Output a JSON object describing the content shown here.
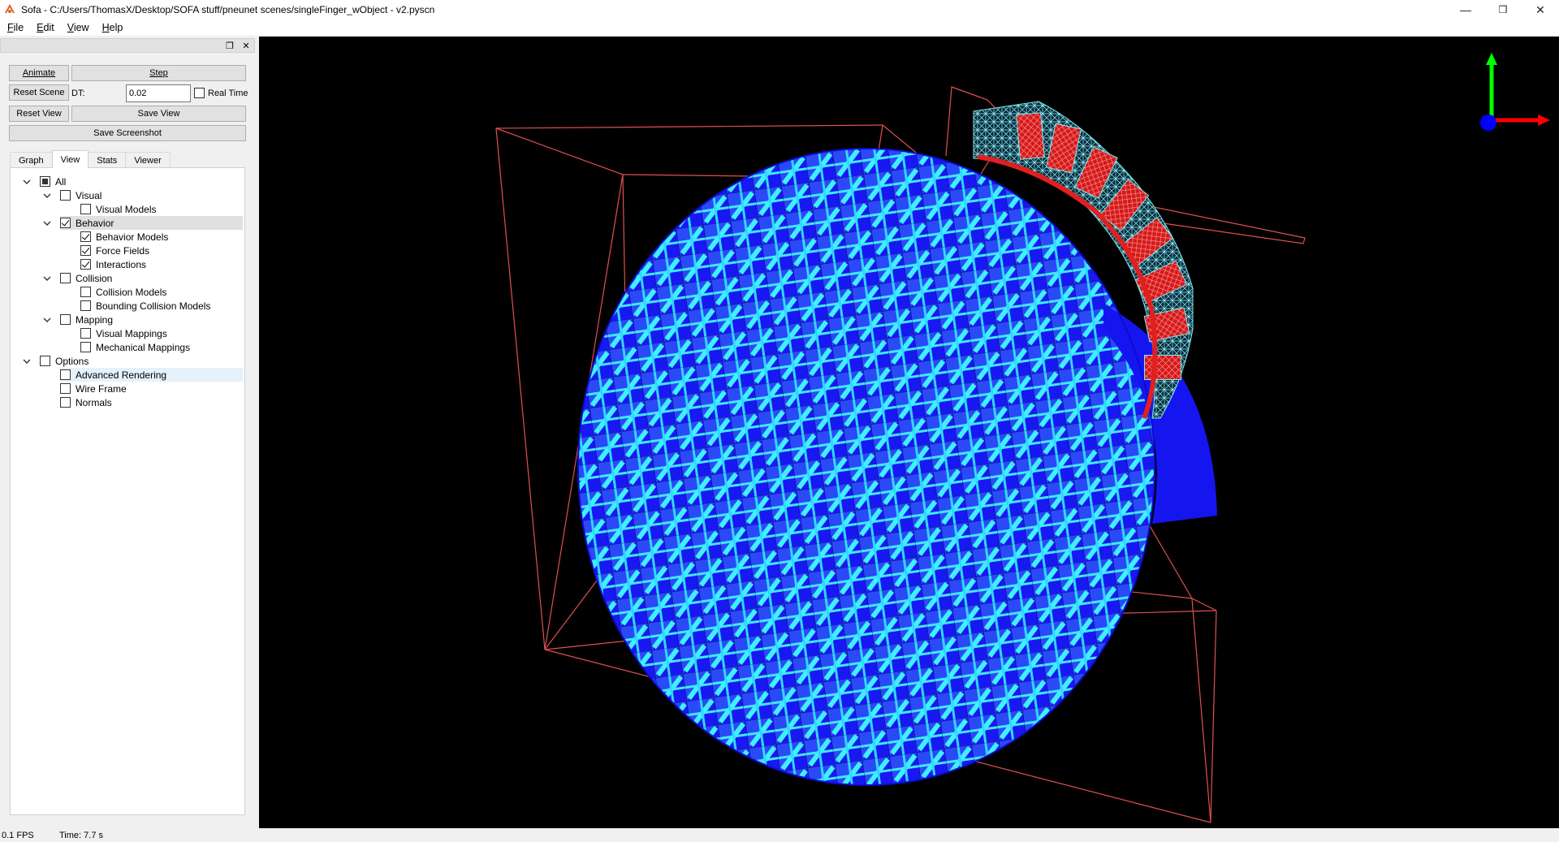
{
  "window": {
    "title": "Sofa - C:/Users/ThomasX/Desktop/SOFA stuff/pneunet scenes/singleFinger_wObject - v2.pyscn"
  },
  "menu": [
    {
      "label": "File",
      "accel": "F",
      "rest": "ile"
    },
    {
      "label": "Edit",
      "accel": "E",
      "rest": "dit"
    },
    {
      "label": "View",
      "accel": "V",
      "rest": "iew"
    },
    {
      "label": "Help",
      "accel": "H",
      "rest": "elp"
    }
  ],
  "controls": {
    "animate": "Animate",
    "step": "Step",
    "reset_scene": "Reset Scene",
    "dt_label": "DT:",
    "dt_value": "0.02",
    "real_time": "Real Time",
    "real_time_checked": false,
    "reset_view": "Reset View",
    "save_view": "Save View",
    "save_screenshot": "Save Screenshot"
  },
  "tabs": [
    {
      "label": "Graph",
      "active": false
    },
    {
      "label": "View",
      "active": true
    },
    {
      "label": "Stats",
      "active": false
    },
    {
      "label": "Viewer",
      "active": false
    }
  ],
  "tree": [
    {
      "label": "All",
      "level": 0,
      "expandable": true,
      "state": "partial"
    },
    {
      "label": "Visual",
      "level": 1,
      "expandable": true,
      "state": "unchecked"
    },
    {
      "label": "Visual Models",
      "level": 2,
      "expandable": false,
      "state": "unchecked"
    },
    {
      "label": "Behavior",
      "level": 1,
      "expandable": true,
      "state": "checked",
      "selected": true
    },
    {
      "label": "Behavior Models",
      "level": 2,
      "expandable": false,
      "state": "checked"
    },
    {
      "label": "Force Fields",
      "level": 2,
      "expandable": false,
      "state": "checked"
    },
    {
      "label": "Interactions",
      "level": 2,
      "expandable": false,
      "state": "checked"
    },
    {
      "label": "Collision",
      "level": 1,
      "expandable": true,
      "state": "unchecked"
    },
    {
      "label": "Collision Models",
      "level": 2,
      "expandable": false,
      "state": "unchecked"
    },
    {
      "label": "Bounding Collision Models",
      "level": 2,
      "expandable": false,
      "state": "unchecked"
    },
    {
      "label": "Mapping",
      "level": 1,
      "expandable": true,
      "state": "unchecked"
    },
    {
      "label": "Visual Mappings",
      "level": 2,
      "expandable": false,
      "state": "unchecked"
    },
    {
      "label": "Mechanical Mappings",
      "level": 2,
      "expandable": false,
      "state": "unchecked"
    },
    {
      "label": "Options",
      "level": 0,
      "expandable": true,
      "state": "unchecked"
    },
    {
      "label": "Advanced Rendering",
      "level": 1,
      "expandable": false,
      "state": "unchecked",
      "hover": true
    },
    {
      "label": "Wire Frame",
      "level": 1,
      "expandable": false,
      "state": "unchecked"
    },
    {
      "label": "Normals",
      "level": 1,
      "expandable": false,
      "state": "unchecked"
    }
  ],
  "status": {
    "fps": "0.1 FPS",
    "time": "Time: 7.7 s"
  },
  "colors": {
    "sphere_dark": "#1515f0",
    "sphere_light": "#3ff0ff",
    "bbox": "#e05050",
    "finger_mesh": "#7fe8f0",
    "finger_fill": "#e02020",
    "axis_x": "#ff0000",
    "axis_y": "#00ff00",
    "axis_z": "#0000ff"
  }
}
